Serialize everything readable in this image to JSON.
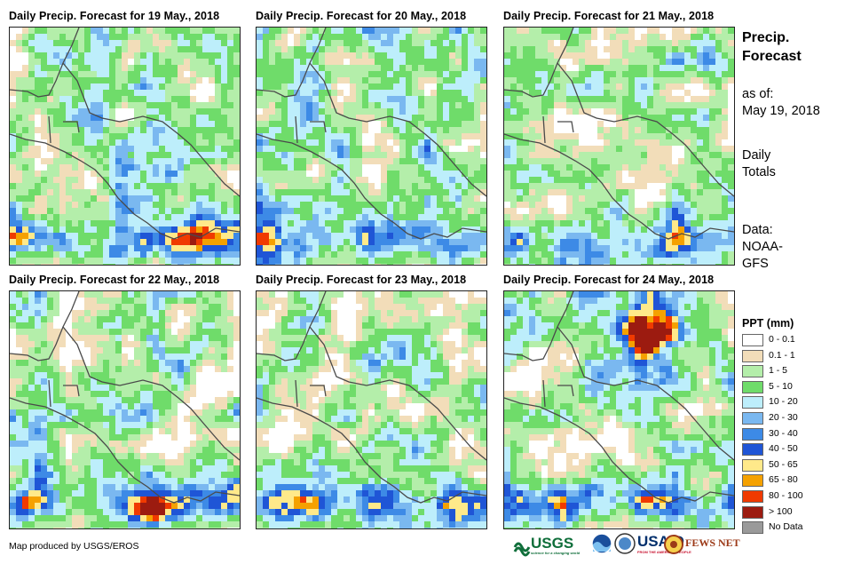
{
  "panels": [
    {
      "title": "Daily  Precip.  Forecast for 19 May., 2018",
      "seed": 19
    },
    {
      "title": "Daily  Precip.  Forecast for 20 May., 2018",
      "seed": 20
    },
    {
      "title": "Daily  Precip.  Forecast for 21 May., 2018",
      "seed": 21
    },
    {
      "title": "Daily  Precip.  Forecast for 22 May., 2018",
      "seed": 22
    },
    {
      "title": "Daily  Precip.  Forecast for 23 May., 2018",
      "seed": 23
    },
    {
      "title": "Daily  Precip.  Forecast for 24 May., 2018",
      "seed": 24
    }
  ],
  "side": {
    "heading_line1": "Precip.",
    "heading_line2": "Forecast",
    "asof_label": "as of:",
    "asof_date": "May 19, 2018",
    "totals_line1": "Daily",
    "totals_line2": "Totals",
    "data_label": "Data:",
    "data_source_line1": "NOAA-",
    "data_source_line2": "GFS"
  },
  "legend": {
    "title": "PPT (mm)",
    "items": [
      {
        "label": "0 - 0.1",
        "color": "#ffffff"
      },
      {
        "label": "0.1 - 1",
        "color": "#f2ddb9"
      },
      {
        "label": "1 - 5",
        "color": "#b4eeaa"
      },
      {
        "label": "5 - 10",
        "color": "#6fdc6a"
      },
      {
        "label": "10 - 20",
        "color": "#bdeefb"
      },
      {
        "label": "20 - 30",
        "color": "#7ab8f0"
      },
      {
        "label": "30 - 40",
        "color": "#3d8ae6"
      },
      {
        "label": "40 - 50",
        "color": "#1f55d6"
      },
      {
        "label": "50 - 65",
        "color": "#ffe98a"
      },
      {
        "label": "65 - 80",
        "color": "#f5a100"
      },
      {
        "label": "80 - 100",
        "color": "#f03a00"
      },
      {
        "label": "> 100",
        "color": "#9c1b10"
      },
      {
        "label": "No Data",
        "color": "#9a9a9a"
      }
    ]
  },
  "footer": {
    "credit": "Map produced by USGS/EROS"
  },
  "logos": {
    "usgs": "USGS",
    "usgs_tagline": "science for a changing world",
    "usaid": "USAID",
    "usaid_tagline": "FROM THE AMERICAN PEOPLE",
    "fewsnet": "FEWS NET"
  }
}
